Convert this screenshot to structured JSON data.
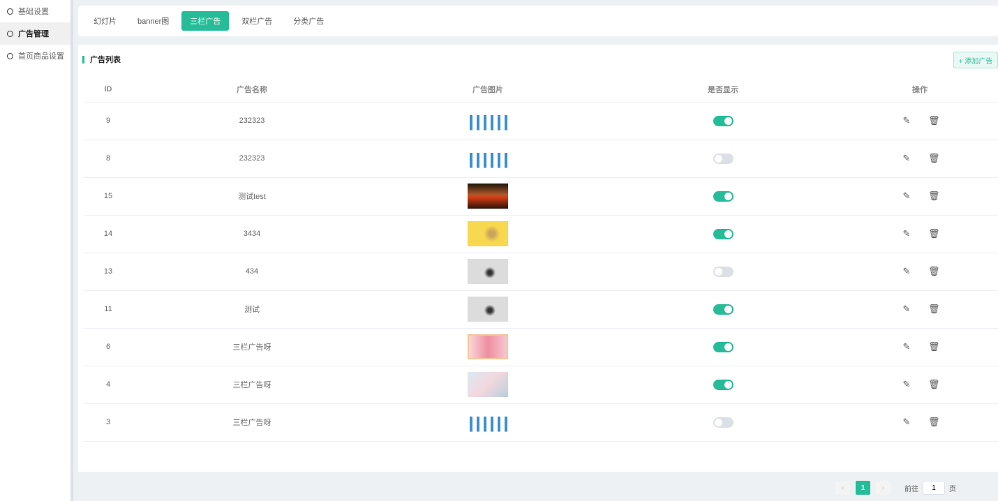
{
  "sidebar": {
    "items": [
      {
        "label": "基础设置"
      },
      {
        "label": "广告管理",
        "active": true
      },
      {
        "label": "首页商品设置"
      }
    ]
  },
  "tabs": [
    {
      "label": "幻灯片"
    },
    {
      "label": "banner图"
    },
    {
      "label": "三栏广告",
      "active": true
    },
    {
      "label": "双栏广告"
    },
    {
      "label": "分类广告"
    }
  ],
  "list": {
    "title": "广告列表",
    "add_label": "+ 添加广告"
  },
  "table": {
    "headers": [
      "ID",
      "广告名称",
      "广告图片",
      "是否显示",
      "操作"
    ],
    "rows": [
      {
        "id": "9",
        "name": "232323",
        "image": "bottles",
        "shown": true
      },
      {
        "id": "8",
        "name": "232323",
        "image": "bottles",
        "shown": false
      },
      {
        "id": "15",
        "name": "测试test",
        "image": "sunset",
        "shown": true
      },
      {
        "id": "14",
        "name": "3434",
        "image": "yellow",
        "shown": true
      },
      {
        "id": "13",
        "name": "434",
        "image": "chandelier",
        "shown": false
      },
      {
        "id": "11",
        "name": "测试",
        "image": "chandelier",
        "shown": true
      },
      {
        "id": "6",
        "name": "三栏广告呀",
        "image": "pink",
        "shown": true
      },
      {
        "id": "4",
        "name": "三栏广告呀",
        "image": "blossom",
        "shown": true
      },
      {
        "id": "3",
        "name": "三栏广告呀",
        "image": "bottles",
        "shown": false
      }
    ]
  },
  "pagination": {
    "prev": "‹",
    "current": "1",
    "next": "›",
    "goto_label": "前往",
    "goto_value": "1",
    "page_suffix": "页"
  },
  "colors": {
    "accent": "#26bc97"
  }
}
